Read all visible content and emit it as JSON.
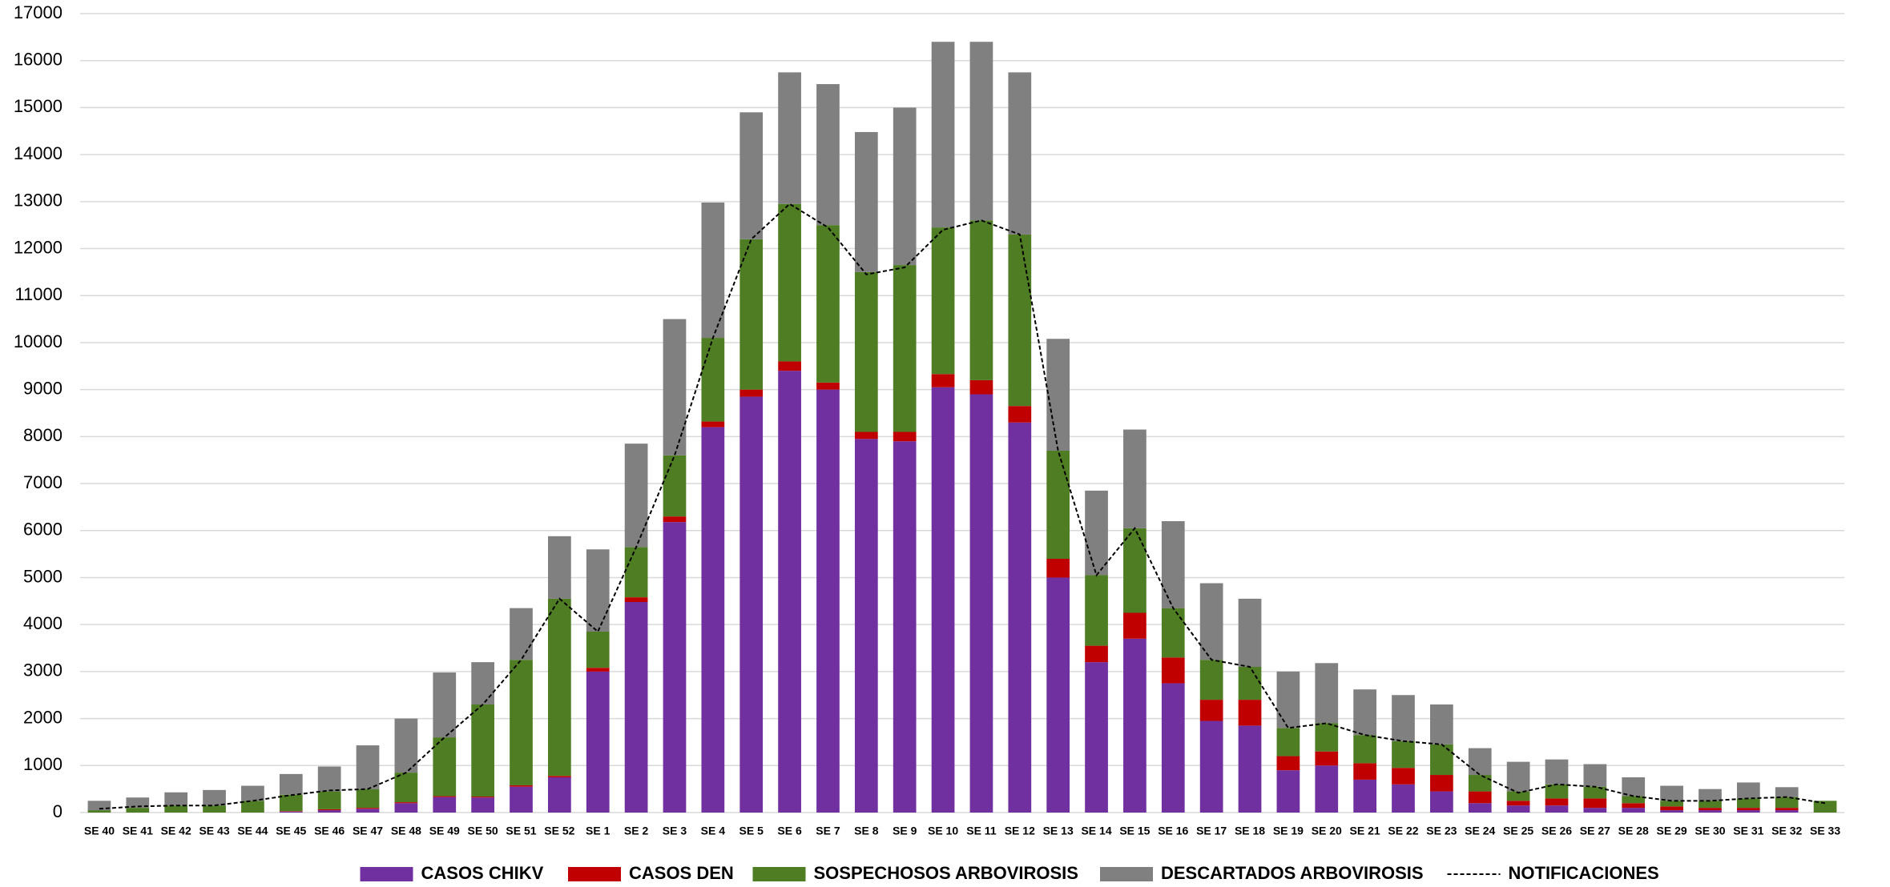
{
  "chart_data": {
    "type": "stacked-bar",
    "categories": [
      "SE 40",
      "SE 41",
      "SE 42",
      "SE 43",
      "SE 44",
      "SE 45",
      "SE 46",
      "SE 47",
      "SE 48",
      "SE 49",
      "SE 50",
      "SE 51",
      "SE 52",
      "SE 1",
      "SE 2",
      "SE 3",
      "SE 4",
      "SE 5",
      "SE 6",
      "SE 7",
      "SE 8",
      "SE 9",
      "SE 10",
      "SE 11",
      "SE 12",
      "SE 13",
      "SE 14",
      "SE 15",
      "SE 16",
      "SE 17",
      "SE 18",
      "SE 19",
      "SE 20",
      "SE 21",
      "SE 22",
      "SE 23",
      "SE 24",
      "SE 25",
      "SE 26",
      "SE 27",
      "SE 28",
      "SE 29",
      "SE 30",
      "SE 31",
      "SE 32",
      "SE 33"
    ],
    "series": [
      {
        "name": "CASOS CHIKV",
        "color": "#7030a0",
        "type": "bar",
        "values": [
          0,
          0,
          0,
          0,
          0,
          20,
          50,
          80,
          200,
          330,
          320,
          550,
          750,
          3000,
          4480,
          6180,
          8200,
          8850,
          9400,
          9000,
          7950,
          7900,
          9050,
          8900,
          8300,
          5000,
          3200,
          3700,
          2750,
          1950,
          1850,
          900,
          1000,
          700,
          600,
          450,
          200,
          150,
          150,
          100,
          100,
          50,
          50,
          50,
          50,
          0
        ]
      },
      {
        "name": "CASOS DEN",
        "color": "#c00000",
        "type": "bar",
        "values": [
          0,
          0,
          0,
          0,
          0,
          10,
          20,
          20,
          20,
          20,
          20,
          30,
          30,
          80,
          100,
          120,
          120,
          150,
          200,
          150,
          150,
          200,
          280,
          300,
          350,
          400,
          350,
          550,
          550,
          450,
          550,
          300,
          300,
          350,
          350,
          350,
          250,
          100,
          150,
          200,
          100,
          80,
          50,
          50,
          50,
          0
        ]
      },
      {
        "name": "SOSPECHOSOS ARBOVIROSIS",
        "color": "#4f7d24",
        "type": "bar",
        "values": [
          50,
          100,
          150,
          150,
          250,
          350,
          380,
          400,
          630,
          1250,
          1960,
          2670,
          3770,
          770,
          1070,
          1300,
          1780,
          3200,
          3350,
          3350,
          3400,
          3550,
          3120,
          3400,
          3650,
          2300,
          1500,
          1800,
          1050,
          850,
          700,
          600,
          600,
          600,
          570,
          650,
          350,
          200,
          300,
          250,
          150,
          120,
          150,
          200,
          230,
          250
        ]
      },
      {
        "name": "DESCARTADOS ARBOVIROSIS",
        "color": "#808080",
        "type": "bar",
        "values": [
          200,
          220,
          280,
          330,
          320,
          440,
          530,
          930,
          1150,
          1380,
          900,
          1100,
          1330,
          1750,
          2200,
          2900,
          2880,
          2700,
          2800,
          3000,
          2980,
          3350,
          3950,
          3800,
          3450,
          2380,
          1800,
          2100,
          1850,
          1630,
          1450,
          1200,
          1280,
          970,
          980,
          850,
          570,
          630,
          530,
          480,
          400,
          320,
          250,
          340,
          210,
          0
        ]
      },
      {
        "name": "NOTIFICACIONES",
        "color": "#000000",
        "type": "line",
        "values": [
          80,
          130,
          150,
          150,
          250,
          370,
          470,
          500,
          850,
          1600,
          2300,
          3250,
          4550,
          3850,
          5650,
          7600,
          10100,
          12200,
          12950,
          12450,
          11450,
          11600,
          12400,
          12600,
          12300,
          7700,
          5050,
          6050,
          4350,
          3250,
          3100,
          1800,
          1900,
          1650,
          1520,
          1450,
          800,
          420,
          600,
          550,
          350,
          250,
          250,
          300,
          330,
          200
        ]
      }
    ],
    "ylim": [
      0,
      17000
    ],
    "yticks": [
      0,
      1000,
      2000,
      3000,
      4000,
      5000,
      6000,
      7000,
      8000,
      9000,
      10000,
      11000,
      12000,
      13000,
      14000,
      15000,
      16000,
      17000
    ],
    "grid": true
  }
}
